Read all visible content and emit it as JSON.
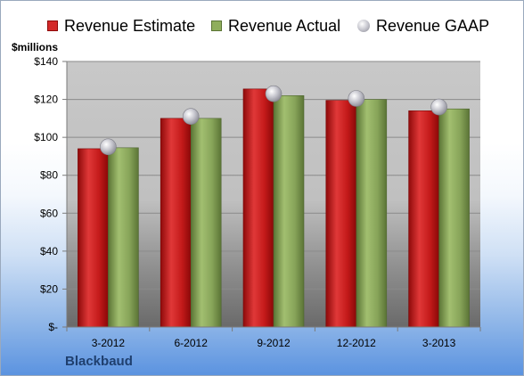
{
  "chart_data": {
    "type": "bar",
    "categories": [
      "3-2012",
      "6-2012",
      "9-2012",
      "12-2012",
      "3-2013"
    ],
    "series": [
      {
        "name": "Revenue Estimate",
        "values": [
          94,
          110,
          125.5,
          119.5,
          114
        ],
        "color": "#d42a2a",
        "kind": "bar"
      },
      {
        "name": "Revenue Actual",
        "values": [
          94.5,
          110,
          122,
          120,
          115
        ],
        "color": "#8fae5c",
        "kind": "bar"
      },
      {
        "name": "Revenue GAAP",
        "values": [
          95,
          111,
          123,
          120.5,
          116
        ],
        "color": "#c0c0c8",
        "kind": "marker"
      }
    ],
    "ylabel": "$millions",
    "ylim": [
      0,
      140
    ],
    "yticks": [
      0,
      20,
      40,
      60,
      80,
      100,
      120,
      140
    ],
    "ytick_labels": [
      "$-",
      "$20",
      "$40",
      "$60",
      "$80",
      "$100",
      "$120",
      "$140"
    ],
    "grid": true,
    "legend": "top",
    "company": "Blackbaud"
  }
}
